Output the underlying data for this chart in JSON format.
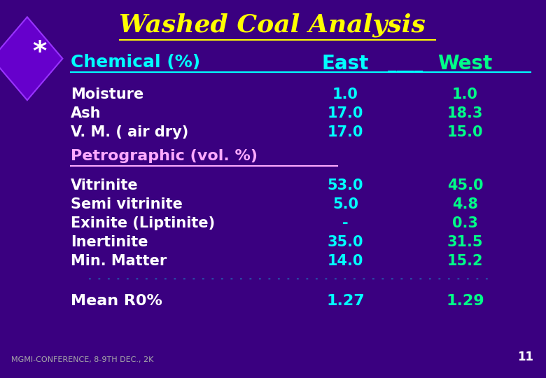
{
  "title": "Washed Coal Analysis",
  "bg_color": "#3a0080",
  "title_color": "#ffff00",
  "header_color": "#00ffff",
  "east_color": "#00ffff",
  "west_color": "#00ff88",
  "label_color": "#ffffff",
  "petro_color": "#ffaaff",
  "footer_color": "#aaaaaa",
  "page_num_color": "#ffffff",
  "chemical_header": "Chemical (%)",
  "east_header": "East",
  "west_header": "West",
  "rows": [
    {
      "label": "Moisture",
      "east": "1.0",
      "west": "1.0"
    },
    {
      "label": "Ash",
      "east": "17.0",
      "west": "18.3"
    },
    {
      "label": "V. M. ( air dry)",
      "east": "17.0",
      "west": "15.0"
    }
  ],
  "petro_header": "Petrographic (vol. %)",
  "petro_rows": [
    {
      "label": "Vitrinite",
      "east": "53.0",
      "west": "45.0"
    },
    {
      "label": "Semi vitrinite",
      "east": "5.0",
      "west": "4.8"
    },
    {
      "label": "Exinite (Liptinite)",
      "east": "-",
      "west": "0.3"
    },
    {
      "label": "Inertinite",
      "east": "35.0",
      "west": "31.5"
    },
    {
      "label": "Min. Matter",
      "east": "14.0",
      "west": "15.2"
    }
  ],
  "mean_label": "Mean R0%",
  "mean_east": "1.27",
  "mean_west": "1.29",
  "footer": "MGMI-CONFERENCE, 8-9TH DEC., 2K",
  "page_num": "11",
  "diamond_color": "#6600cc",
  "diamond_edge": "#9933ff",
  "separator": "- - - - - - - - - - - - - - - - - - - - - - - - - - - - - - - - - - - - - - - - - - -"
}
